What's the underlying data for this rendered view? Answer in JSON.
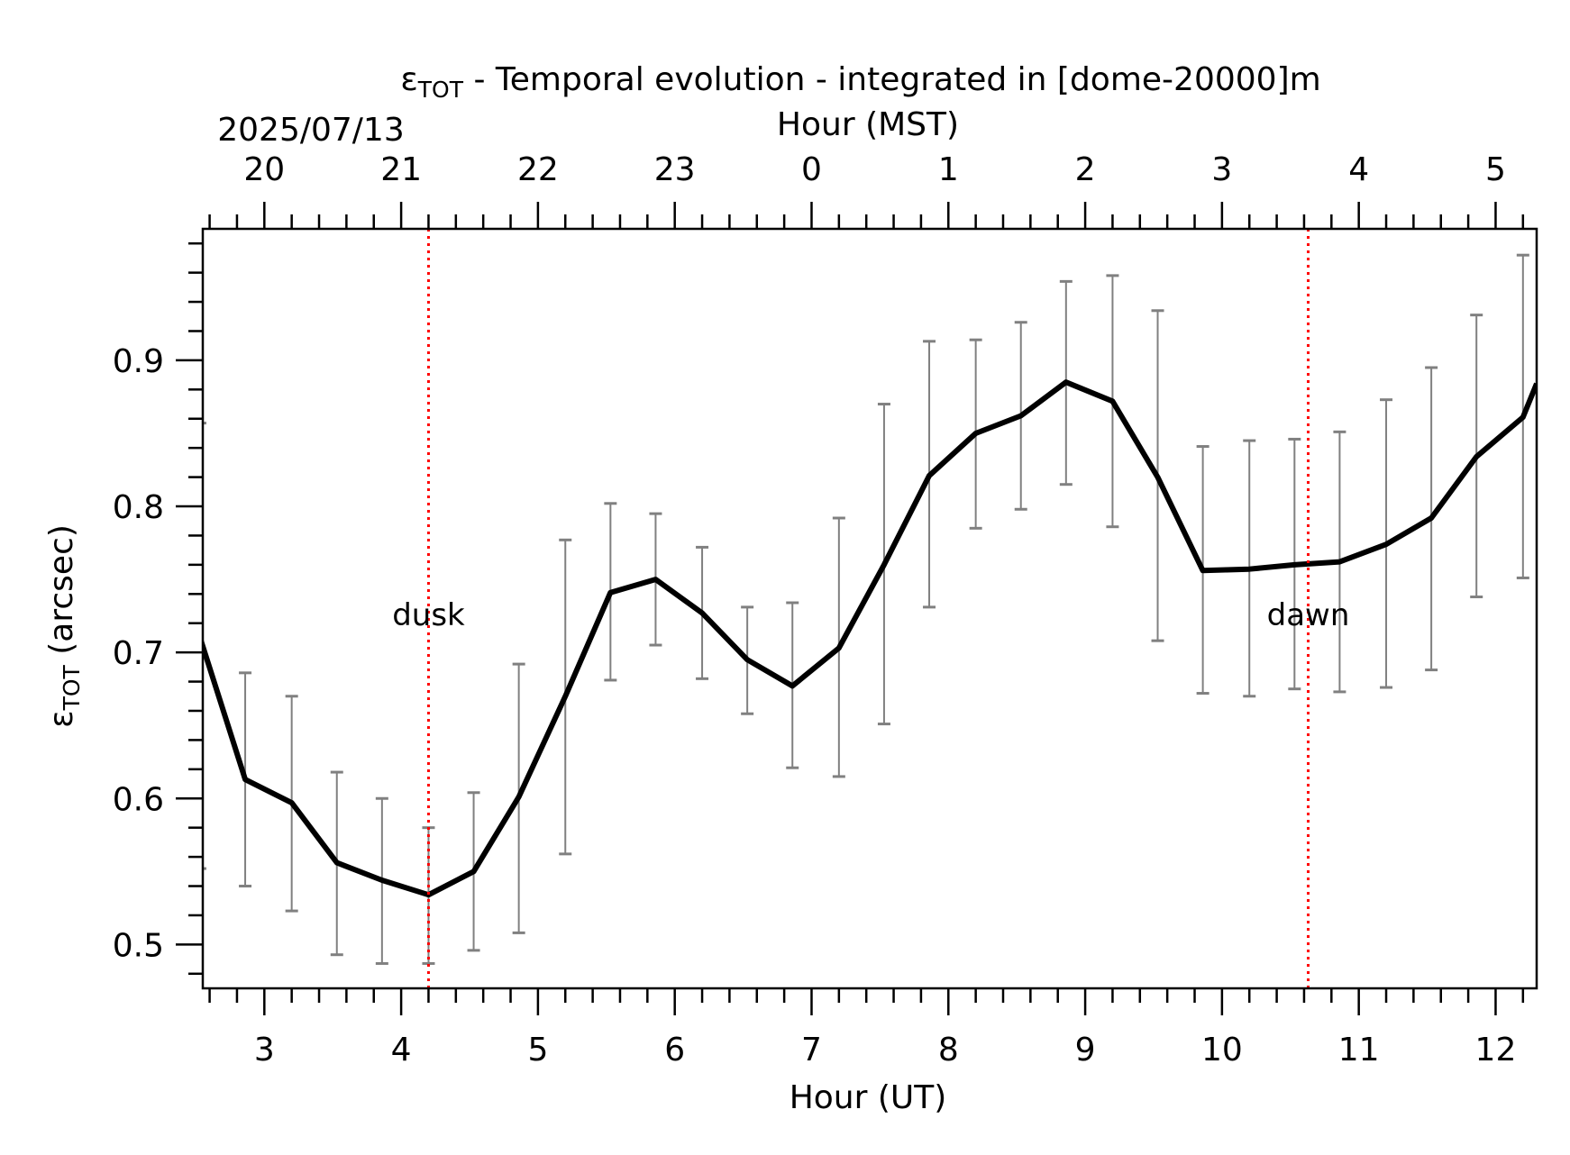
{
  "chart_data": {
    "type": "line",
    "title_prefix": "ε",
    "title_sub": "TOT",
    "title_rest": " - Temporal evolution - integrated in [dome-20000]m",
    "date_label": "2025/07/13",
    "top_axis_label": "Hour (MST)",
    "xlabel": "Hour (UT)",
    "ylabel_prefix": "ε",
    "ylabel_sub": "TOT",
    "ylabel_rest": " (arcsec)",
    "xlim": [
      2.55,
      12.3
    ],
    "ylim": [
      0.47,
      0.99
    ],
    "x_ticks": [
      3,
      4,
      5,
      6,
      7,
      8,
      9,
      10,
      11,
      12
    ],
    "y_ticks": [
      0.5,
      0.6,
      0.7,
      0.8,
      0.9
    ],
    "y_tick_labels": [
      "0.5",
      "0.6",
      "0.7",
      "0.8",
      "0.9"
    ],
    "top_ticks": [
      {
        "x": 3,
        "label": "20"
      },
      {
        "x": 4,
        "label": "21"
      },
      {
        "x": 5,
        "label": "22"
      },
      {
        "x": 6,
        "label": "23"
      },
      {
        "x": 7,
        "label": "0"
      },
      {
        "x": 8,
        "label": "1"
      },
      {
        "x": 9,
        "label": "2"
      },
      {
        "x": 10,
        "label": "3"
      },
      {
        "x": 11,
        "label": "4"
      },
      {
        "x": 12,
        "label": "5"
      }
    ],
    "series": [
      {
        "x": [
          2.53,
          2.86,
          3.2,
          3.53,
          3.86,
          4.2,
          4.53,
          4.86,
          5.2,
          5.53,
          5.86,
          6.2,
          6.53,
          6.86,
          7.2,
          7.53,
          7.86,
          8.2,
          8.53,
          8.86,
          9.2,
          9.53,
          9.86,
          10.2,
          10.53,
          10.86,
          11.2,
          11.53,
          11.86,
          12.2,
          12.3
        ],
        "y": [
          0.71,
          0.613,
          0.597,
          0.556,
          0.544,
          0.534,
          0.55,
          0.601,
          0.67,
          0.741,
          0.75,
          0.727,
          0.695,
          0.677,
          0.703,
          0.76,
          0.821,
          0.85,
          0.862,
          0.885,
          0.872,
          0.82,
          0.756,
          0.757,
          0.76,
          0.762,
          0.774,
          0.792,
          0.834,
          0.861,
          0.884
        ],
        "y_low": [
          0.552,
          0.54,
          0.523,
          0.493,
          0.487,
          0.487,
          0.496,
          0.508,
          0.562,
          0.681,
          0.705,
          0.682,
          0.658,
          0.621,
          0.615,
          0.651,
          0.731,
          0.785,
          0.798,
          0.815,
          0.786,
          0.708,
          0.672,
          0.67,
          0.675,
          0.673,
          0.676,
          0.688,
          0.738,
          0.751,
          null
        ],
        "y_high": [
          0.857,
          0.686,
          0.67,
          0.618,
          0.6,
          0.58,
          0.604,
          0.692,
          0.777,
          0.802,
          0.795,
          0.772,
          0.731,
          0.734,
          0.792,
          0.87,
          0.913,
          0.914,
          0.926,
          0.954,
          0.958,
          0.934,
          0.841,
          0.845,
          0.846,
          0.851,
          0.873,
          0.895,
          0.931,
          0.972,
          null
        ]
      }
    ],
    "markers": [
      {
        "label": "dusk",
        "x": 4.2,
        "y": 0.726
      },
      {
        "label": "dawn",
        "x": 10.63,
        "y": 0.726
      }
    ],
    "colors": {
      "line": "#000000",
      "errorbar": "#808080",
      "marker": "#ff0000",
      "axis": "#000000"
    },
    "grid": false
  }
}
